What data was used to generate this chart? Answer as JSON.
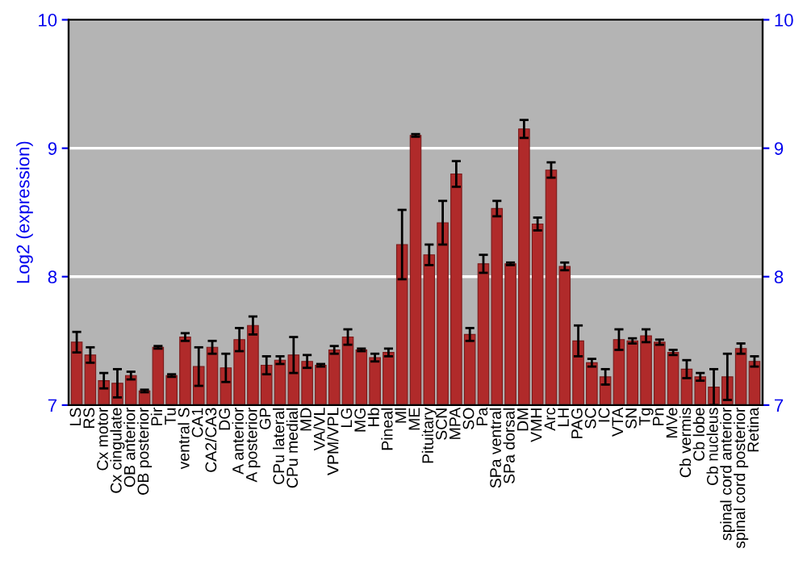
{
  "chart_data": {
    "type": "bar",
    "ylabel": "Log2 (expression)",
    "categories": [
      "LS",
      "RS",
      "Cx motor",
      "Cx cingulate",
      "OB anterior",
      "OB posterior",
      "Pir",
      "Tu",
      "ventral S",
      "CA1",
      "CA2/CA3",
      "DG",
      "A anterior",
      "A posterior",
      "GP",
      "CPu lateral",
      "CPu medial",
      "MD",
      "VA/VL",
      "VPM/VPL",
      "LG",
      "MG",
      "Hb",
      "Pineal",
      "Ml",
      "ME",
      "Pituitary",
      "SCN",
      "MPA",
      "SO",
      "Pa",
      "SPa ventral",
      "SPa dorsal",
      "DM",
      "VMH",
      "Arc",
      "LH",
      "PAG",
      "SC",
      "IC",
      "VTA",
      "SN",
      "Tg",
      "Pn",
      "MVe",
      "Cb vermis",
      "Cb lobe",
      "Cb nucleus",
      "spinal cord anterior",
      "spinal cord posterior",
      "Retina"
    ],
    "values": [
      7.49,
      7.39,
      7.19,
      7.17,
      7.23,
      7.11,
      7.45,
      7.23,
      7.53,
      7.3,
      7.45,
      7.29,
      7.51,
      7.62,
      7.31,
      7.35,
      7.39,
      7.34,
      7.31,
      7.43,
      7.53,
      7.43,
      7.37,
      7.41,
      8.25,
      9.1,
      8.17,
      8.42,
      8.8,
      7.55,
      8.1,
      8.53,
      8.1,
      9.15,
      8.41,
      8.83,
      8.08,
      7.5,
      7.33,
      7.22,
      7.51,
      7.5,
      7.54,
      7.49,
      7.41,
      7.28,
      7.22,
      7.14,
      7.22,
      7.44,
      7.34
    ],
    "errors": [
      0.08,
      0.06,
      0.06,
      0.11,
      0.03,
      0.01,
      0.01,
      0.01,
      0.03,
      0.15,
      0.05,
      0.11,
      0.09,
      0.07,
      0.07,
      0.03,
      0.14,
      0.05,
      0.01,
      0.03,
      0.06,
      0.01,
      0.03,
      0.03,
      0.27,
      0.01,
      0.08,
      0.17,
      0.1,
      0.05,
      0.07,
      0.06,
      0.01,
      0.07,
      0.05,
      0.06,
      0.03,
      0.12,
      0.03,
      0.06,
      0.08,
      0.02,
      0.05,
      0.02,
      0.02,
      0.07,
      0.03,
      0.14,
      0.18,
      0.04,
      0.04
    ],
    "color": "#b02a2a",
    "ylim": [
      7,
      10
    ],
    "yticks": [
      7,
      8,
      9,
      10
    ],
    "y2lim": [
      7,
      10
    ],
    "y2ticks": [
      7,
      8,
      9,
      10
    ],
    "grid": "y"
  }
}
